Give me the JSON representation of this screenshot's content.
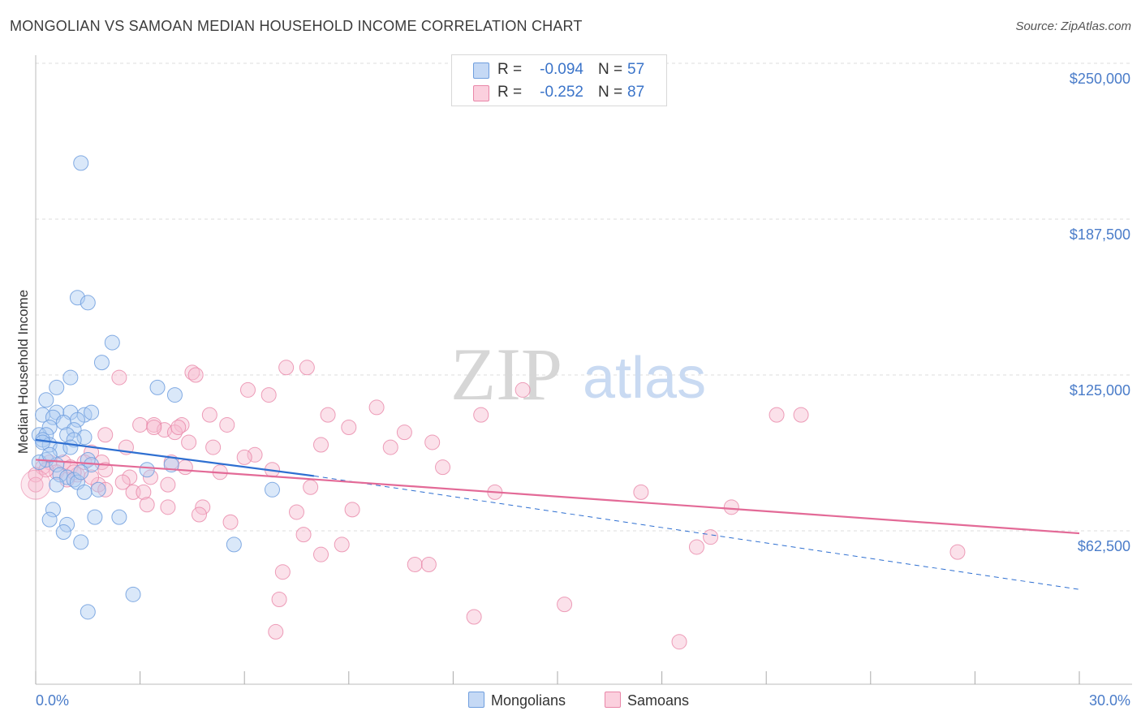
{
  "title": "MONGOLIAN VS SAMOAN MEDIAN HOUSEHOLD INCOME CORRELATION CHART",
  "source": "Source: ZipAtlas.com",
  "watermark": {
    "zip": "ZIP",
    "atlas": "atlas"
  },
  "legend_top": [
    {
      "r_label": "R =",
      "r_value": "-0.094",
      "n_label": "N =",
      "n_value": "57"
    },
    {
      "r_label": "R =",
      "r_value": "-0.252",
      "n_label": "N =",
      "n_value": "87"
    }
  ],
  "legend_bottom": [
    "Mongolians",
    "Samoans"
  ],
  "colors": {
    "mongolians_fill": "#aecbf2",
    "mongolians_stroke": "#6f9ede",
    "mongolians_line": "#2e6fd1",
    "samoans_fill": "#f7bcd0",
    "samoans_stroke": "#e986a8",
    "samoans_line": "#e36a97",
    "axis_text": "#4a7cc9",
    "grid": "#dcdcdc"
  },
  "chart_data": {
    "type": "scatter",
    "title": "MONGOLIAN VS SAMOAN MEDIAN HOUSEHOLD INCOME CORRELATION CHART",
    "xlabel": "",
    "ylabel": "Median Household Income",
    "xlim": [
      0,
      30
    ],
    "ylim": [
      0,
      262000
    ],
    "x_tick_labels": [
      "0.0%",
      "30.0%"
    ],
    "y_ticks": [
      62500,
      125000,
      187500,
      250000
    ],
    "y_tick_labels": [
      "$62,500",
      "$125,000",
      "$187,500",
      "$250,000"
    ],
    "grid": true,
    "legend_position": "top-center",
    "series": [
      {
        "name": "Mongolians",
        "R": -0.094,
        "N": 57,
        "points": [
          [
            1.3,
            210000
          ],
          [
            1.2,
            156000
          ],
          [
            1.5,
            154000
          ],
          [
            2.2,
            138000
          ],
          [
            1.9,
            130000
          ],
          [
            1.0,
            124000
          ],
          [
            0.6,
            120000
          ],
          [
            3.5,
            120000
          ],
          [
            4.0,
            117000
          ],
          [
            0.3,
            115000
          ],
          [
            0.6,
            110000
          ],
          [
            1.0,
            110000
          ],
          [
            1.4,
            109000
          ],
          [
            1.6,
            110000
          ],
          [
            0.2,
            109000
          ],
          [
            0.5,
            108000
          ],
          [
            1.2,
            107000
          ],
          [
            0.8,
            106000
          ],
          [
            0.4,
            104000
          ],
          [
            1.1,
            103000
          ],
          [
            0.1,
            101000
          ],
          [
            0.3,
            101000
          ],
          [
            0.9,
            101000
          ],
          [
            1.4,
            100000
          ],
          [
            0.2,
            99000
          ],
          [
            0.4,
            97000
          ],
          [
            1.1,
            99000
          ],
          [
            0.7,
            95000
          ],
          [
            1.5,
            91000
          ],
          [
            0.3,
            91000
          ],
          [
            0.1,
            90000
          ],
          [
            0.6,
            89000
          ],
          [
            1.6,
            89000
          ],
          [
            3.2,
            87000
          ],
          [
            3.9,
            89000
          ],
          [
            0.7,
            85000
          ],
          [
            0.9,
            84000
          ],
          [
            1.1,
            83000
          ],
          [
            1.2,
            82000
          ],
          [
            0.6,
            81000
          ],
          [
            1.8,
            79000
          ],
          [
            1.4,
            78000
          ],
          [
            6.8,
            79000
          ],
          [
            0.5,
            71000
          ],
          [
            2.4,
            68000
          ],
          [
            1.7,
            68000
          ],
          [
            0.4,
            67000
          ],
          [
            0.9,
            65000
          ],
          [
            0.8,
            62000
          ],
          [
            1.3,
            58000
          ],
          [
            5.7,
            57000
          ],
          [
            2.8,
            37000
          ],
          [
            1.5,
            30000
          ],
          [
            0.2,
            98000
          ],
          [
            1.0,
            96000
          ],
          [
            0.4,
            93000
          ],
          [
            1.3,
            86000
          ]
        ]
      },
      {
        "name": "Samoans",
        "R": -0.252,
        "N": 87,
        "points": [
          [
            4.5,
            126000
          ],
          [
            7.2,
            128000
          ],
          [
            7.8,
            128000
          ],
          [
            4.6,
            125000
          ],
          [
            2.4,
            124000
          ],
          [
            6.1,
            119000
          ],
          [
            14.0,
            119000
          ],
          [
            6.7,
            117000
          ],
          [
            9.8,
            112000
          ],
          [
            5.0,
            109000
          ],
          [
            8.4,
            109000
          ],
          [
            12.8,
            109000
          ],
          [
            21.3,
            109000
          ],
          [
            22.0,
            109000
          ],
          [
            3.0,
            105000
          ],
          [
            3.4,
            105000
          ],
          [
            4.2,
            105000
          ],
          [
            5.5,
            105000
          ],
          [
            9.0,
            104000
          ],
          [
            3.7,
            103000
          ],
          [
            4.0,
            102000
          ],
          [
            10.6,
            102000
          ],
          [
            2.0,
            101000
          ],
          [
            4.4,
            98000
          ],
          [
            11.4,
            98000
          ],
          [
            2.6,
            96000
          ],
          [
            5.1,
            96000
          ],
          [
            8.2,
            97000
          ],
          [
            10.2,
            96000
          ],
          [
            1.6,
            94000
          ],
          [
            6.3,
            93000
          ],
          [
            0.4,
            90000
          ],
          [
            0.8,
            90000
          ],
          [
            1.4,
            90000
          ],
          [
            1.9,
            90000
          ],
          [
            3.9,
            90000
          ],
          [
            0.2,
            88000
          ],
          [
            1.0,
            88000
          ],
          [
            2.0,
            87000
          ],
          [
            4.3,
            88000
          ],
          [
            6.8,
            87000
          ],
          [
            11.7,
            88000
          ],
          [
            0.6,
            86000
          ],
          [
            1.2,
            85000
          ],
          [
            2.7,
            84000
          ],
          [
            3.3,
            84000
          ],
          [
            0.9,
            83000
          ],
          [
            2.5,
            82000
          ],
          [
            1.8,
            81000
          ],
          [
            3.8,
            81000
          ],
          [
            7.9,
            80000
          ],
          [
            2.8,
            78000
          ],
          [
            3.1,
            78000
          ],
          [
            13.2,
            78000
          ],
          [
            17.4,
            78000
          ],
          [
            3.2,
            73000
          ],
          [
            4.8,
            72000
          ],
          [
            3.8,
            72000
          ],
          [
            9.1,
            71000
          ],
          [
            20.0,
            72000
          ],
          [
            7.5,
            70000
          ],
          [
            4.7,
            69000
          ],
          [
            5.6,
            66000
          ],
          [
            7.7,
            61000
          ],
          [
            19.4,
            60000
          ],
          [
            8.8,
            57000
          ],
          [
            19.0,
            56000
          ],
          [
            8.2,
            53000
          ],
          [
            26.5,
            54000
          ],
          [
            10.9,
            49000
          ],
          [
            11.3,
            49000
          ],
          [
            7.1,
            46000
          ],
          [
            15.2,
            33000
          ],
          [
            7.0,
            35000
          ],
          [
            12.6,
            28000
          ],
          [
            6.9,
            22000
          ],
          [
            18.5,
            18000
          ],
          [
            0.0,
            85000
          ],
          [
            0.0,
            81000
          ],
          [
            1.6,
            84000
          ],
          [
            3.4,
            104000
          ],
          [
            4.1,
            104000
          ],
          [
            6.0,
            92000
          ],
          [
            2.0,
            79000
          ],
          [
            5.3,
            86000
          ],
          [
            1.1,
            86000
          ],
          [
            0.3,
            87000
          ]
        ]
      }
    ],
    "trend_lines": [
      {
        "series": "Mongolians",
        "x": [
          0,
          8
        ],
        "y": [
          99000,
          84500
        ],
        "style": "solid"
      },
      {
        "series": "Mongolians",
        "x": [
          8,
          30
        ],
        "y": [
          84500,
          39000
        ],
        "style": "dashed"
      },
      {
        "series": "Samoans",
        "x": [
          0,
          30
        ],
        "y": [
          91000,
          61500
        ],
        "style": "solid"
      }
    ]
  }
}
